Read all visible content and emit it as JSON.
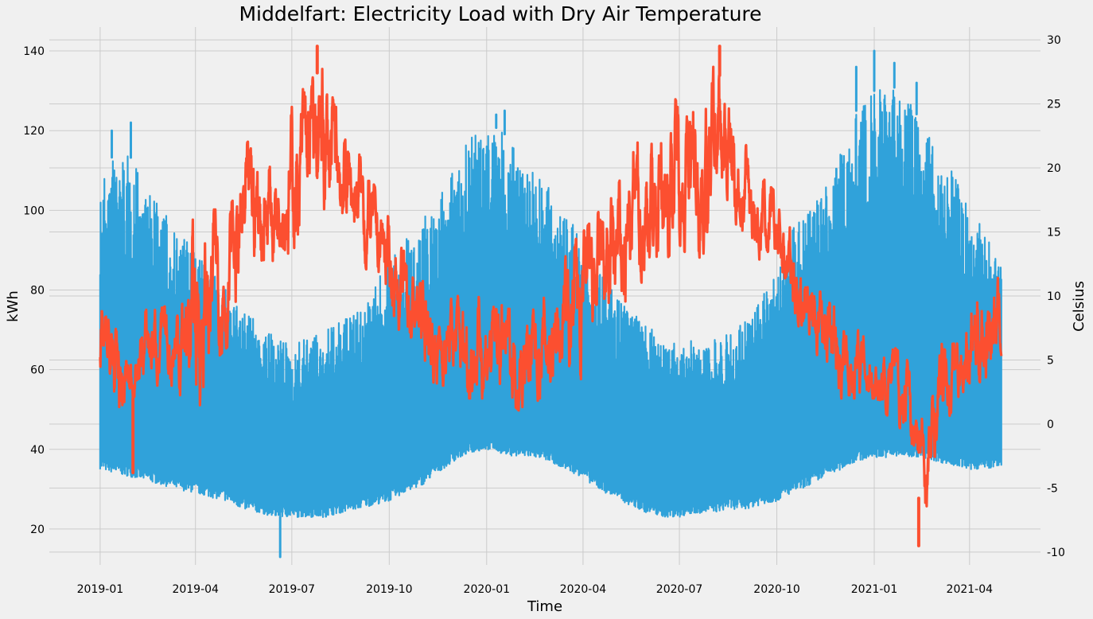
{
  "chart_data": {
    "type": "line",
    "title": "Middelfart: Electricity Load with Dry Air Temperature",
    "xlabel": "Time",
    "ylabel": "kWh",
    "y2label": "Celsius",
    "xlim": [
      "2018-11-14",
      "2021-06-07"
    ],
    "ylim": [
      11,
      146
    ],
    "y2lim": [
      -11,
      31
    ],
    "xticks": [
      "2019-01",
      "2019-04",
      "2019-07",
      "2019-10",
      "2020-01",
      "2020-04",
      "2020-07",
      "2020-10",
      "2021-01",
      "2021-04"
    ],
    "yticks": [
      20,
      40,
      60,
      80,
      100,
      120,
      140
    ],
    "y2ticks": [
      -10,
      -5,
      0,
      5,
      10,
      15,
      20,
      25,
      30
    ],
    "grid": true,
    "legend": "none",
    "colors": {
      "load": "#30a2da",
      "temperature": "#fc4f30",
      "background": "#f0f0f0",
      "grid": "#cbcbcb"
    },
    "series": [
      {
        "axis": "left",
        "color": "#30a2da",
        "x": [
          "2019-01-01",
          "2019-01-15",
          "2019-02-01",
          "2019-02-15",
          "2019-03-01",
          "2019-03-15",
          "2019-04-01",
          "2019-04-15",
          "2019-05-01",
          "2019-05-15",
          "2019-06-01",
          "2019-06-15",
          "2019-07-01",
          "2019-07-15",
          "2019-08-01",
          "2019-08-15",
          "2019-09-01",
          "2019-09-15",
          "2019-10-01",
          "2019-10-15",
          "2019-11-01",
          "2019-11-15",
          "2019-12-01",
          "2019-12-15",
          "2020-01-01",
          "2020-01-15",
          "2020-02-01",
          "2020-02-15",
          "2020-03-01",
          "2020-03-15",
          "2020-04-01",
          "2020-04-15",
          "2020-05-01",
          "2020-05-15",
          "2020-06-01",
          "2020-06-15",
          "2020-07-01",
          "2020-07-15",
          "2020-08-01",
          "2020-08-15",
          "2020-09-01",
          "2020-09-15",
          "2020-10-01",
          "2020-10-15",
          "2020-11-01",
          "2020-11-15",
          "2020-12-01",
          "2020-12-15",
          "2021-01-01",
          "2021-01-15",
          "2021-02-01",
          "2021-02-15",
          "2021-03-01",
          "2021-03-15",
          "2021-04-01",
          "2021-04-15",
          "2021-05-01"
        ],
        "low": [
          35,
          34,
          33,
          32,
          31,
          30,
          29,
          28,
          27,
          25,
          24,
          23,
          23,
          23,
          23,
          24,
          25,
          26,
          27,
          29,
          31,
          34,
          37,
          39,
          40,
          39,
          38,
          38,
          37,
          35,
          33,
          30,
          28,
          26,
          24,
          23,
          23,
          24,
          24,
          25,
          25,
          26,
          27,
          29,
          31,
          33,
          35,
          37,
          38,
          38,
          38,
          38,
          37,
          36,
          35,
          35,
          36
        ],
        "high": [
          107,
          115,
          113,
          105,
          100,
          95,
          90,
          85,
          80,
          75,
          72,
          68,
          66,
          68,
          70,
          72,
          75,
          80,
          88,
          92,
          98,
          102,
          110,
          118,
          122,
          120,
          115,
          112,
          105,
          100,
          92,
          85,
          80,
          75,
          72,
          68,
          66,
          68,
          68,
          70,
          72,
          78,
          85,
          95,
          100,
          105,
          115,
          125,
          130,
          132,
          128,
          122,
          115,
          110,
          100,
          95,
          88
        ],
        "peaks": [
          {
            "x": "2019-01-12",
            "y": 120
          },
          {
            "x": "2019-01-30",
            "y": 122
          },
          {
            "x": "2019-06-20",
            "y": 13
          },
          {
            "x": "2020-01-18",
            "y": 125
          },
          {
            "x": "2020-01-10",
            "y": 124
          },
          {
            "x": "2020-12-15",
            "y": 136
          },
          {
            "x": "2021-01-01",
            "y": 140
          },
          {
            "x": "2021-01-20",
            "y": 137
          },
          {
            "x": "2021-02-10",
            "y": 132
          }
        ]
      },
      {
        "axis": "right",
        "color": "#fc4f30",
        "x": [
          "2019-01-01",
          "2019-01-10",
          "2019-01-20",
          "2019-02-01",
          "2019-02-10",
          "2019-02-20",
          "2019-03-01",
          "2019-03-10",
          "2019-03-20",
          "2019-04-01",
          "2019-04-10",
          "2019-04-20",
          "2019-05-01",
          "2019-05-10",
          "2019-05-20",
          "2019-06-01",
          "2019-06-10",
          "2019-06-20",
          "2019-07-01",
          "2019-07-10",
          "2019-07-20",
          "2019-08-01",
          "2019-08-10",
          "2019-08-20",
          "2019-09-01",
          "2019-09-10",
          "2019-09-20",
          "2019-10-01",
          "2019-10-10",
          "2019-10-20",
          "2019-11-01",
          "2019-11-10",
          "2019-11-20",
          "2019-12-01",
          "2019-12-10",
          "2019-12-20",
          "2020-01-01",
          "2020-01-10",
          "2020-01-20",
          "2020-02-01",
          "2020-02-10",
          "2020-02-20",
          "2020-03-01",
          "2020-03-10",
          "2020-03-20",
          "2020-04-01",
          "2020-04-10",
          "2020-04-20",
          "2020-05-01",
          "2020-05-10",
          "2020-05-20",
          "2020-06-01",
          "2020-06-10",
          "2020-06-20",
          "2020-07-01",
          "2020-07-10",
          "2020-07-20",
          "2020-08-01",
          "2020-08-10",
          "2020-08-20",
          "2020-09-01",
          "2020-09-10",
          "2020-09-20",
          "2020-10-01",
          "2020-10-10",
          "2020-10-20",
          "2020-11-01",
          "2020-11-10",
          "2020-11-20",
          "2020-12-01",
          "2020-12-10",
          "2020-12-20",
          "2021-01-01",
          "2021-01-10",
          "2021-01-20",
          "2021-02-01",
          "2021-02-10",
          "2021-02-20",
          "2021-03-01",
          "2021-03-10",
          "2021-03-20",
          "2021-04-01",
          "2021-04-10",
          "2021-04-20",
          "2021-05-01"
        ],
        "low": [
          2,
          1,
          -2,
          2,
          3,
          3,
          3,
          3,
          2,
          1,
          2,
          5,
          6,
          8,
          10,
          12,
          12,
          14,
          13,
          14,
          14,
          15,
          15,
          15,
          13,
          12,
          10,
          9,
          7,
          6,
          4,
          3,
          3,
          3,
          2,
          2,
          2,
          2,
          2,
          1,
          1,
          2,
          2,
          3,
          3,
          3,
          5,
          6,
          6,
          8,
          10,
          12,
          12,
          13,
          14,
          13,
          13,
          14,
          15,
          15,
          14,
          13,
          12,
          11,
          9,
          7,
          6,
          4,
          3,
          2,
          2,
          2,
          2,
          1,
          0,
          -2,
          -5,
          -9,
          -1,
          0,
          2,
          3,
          3,
          4,
          5
        ],
        "high": [
          9,
          8,
          7,
          5,
          9,
          10,
          9,
          10,
          12,
          17,
          16,
          17,
          18,
          19,
          22,
          23,
          22,
          24,
          25,
          26,
          27,
          28,
          25,
          24,
          22,
          20,
          18,
          16,
          14,
          13,
          12,
          10,
          9,
          10,
          10,
          11,
          10,
          10,
          9,
          9,
          9,
          10,
          11,
          12,
          14,
          15,
          16,
          17,
          18,
          20,
          22,
          23,
          24,
          26,
          27,
          25,
          26,
          28,
          27,
          24,
          22,
          20,
          19,
          18,
          16,
          14,
          13,
          11,
          10,
          9,
          8,
          7,
          6,
          7,
          6,
          5,
          1,
          0,
          6,
          7,
          8,
          10,
          12,
          13,
          11
        ],
        "peaks": [
          {
            "x": "2019-07-25",
            "y": 29.5
          },
          {
            "x": "2020-08-08",
            "y": 29.5
          },
          {
            "x": "2021-02-12",
            "y": -9.5
          },
          {
            "x": "2019-02-01",
            "y": -3.8
          }
        ]
      }
    ]
  }
}
